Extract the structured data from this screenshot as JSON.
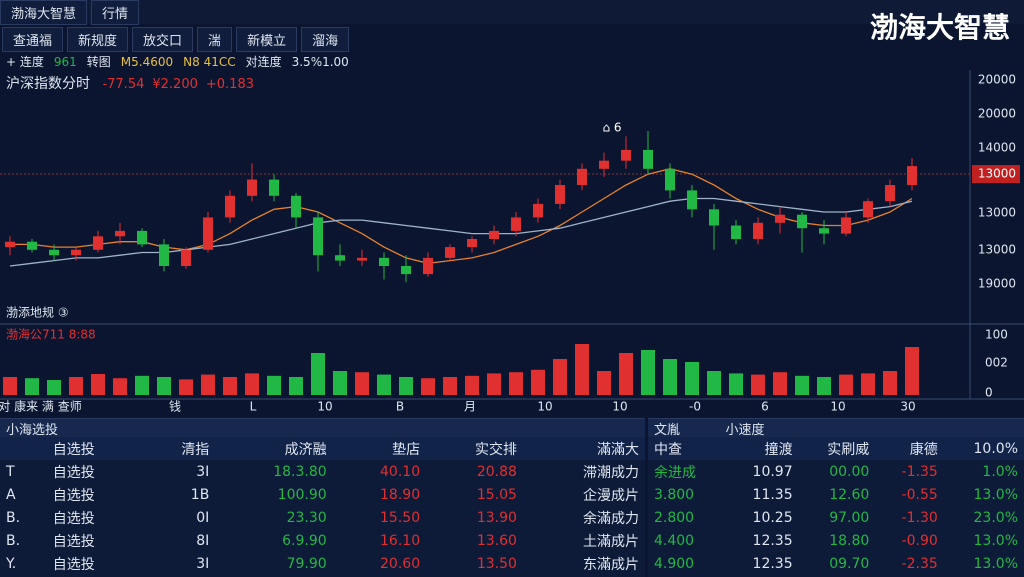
{
  "header": {
    "tabs": [
      "渤海大智慧",
      "行情"
    ],
    "brand": "渤海大智慧"
  },
  "toolbar": [
    "查通福",
    "新规度",
    "放交口",
    "湍",
    "新模立",
    "溜海"
  ],
  "info_line": [
    "+ 连度",
    "961",
    "转图",
    "M5.4600",
    "N8 41CC",
    "对连度",
    "3.5%1.00"
  ],
  "chart": {
    "title": "沪深指数分时",
    "stats": [
      "-77.54",
      "¥2.200",
      "+0.183"
    ],
    "marker": "⌂ 6",
    "price_tag": "13000",
    "y_labels": [
      "20000",
      "20000",
      "14000",
      "13000",
      "13000",
      "19000"
    ],
    "up_color": "#e03030",
    "down_color": "#22b845",
    "ylim": [
      0,
      100
    ],
    "candles": [
      [
        27,
        31,
        24,
        29
      ],
      [
        29,
        30,
        25,
        26
      ],
      [
        26,
        28,
        22,
        24
      ],
      [
        24,
        27,
        22,
        26
      ],
      [
        26,
        33,
        25,
        31
      ],
      [
        31,
        36,
        28,
        33
      ],
      [
        33,
        34,
        27,
        28
      ],
      [
        28,
        30,
        18,
        20
      ],
      [
        20,
        27,
        19,
        26
      ],
      [
        26,
        40,
        25,
        38
      ],
      [
        38,
        48,
        36,
        46
      ],
      [
        46,
        58,
        44,
        52
      ],
      [
        52,
        54,
        44,
        46
      ],
      [
        46,
        47,
        34,
        38
      ],
      [
        38,
        40,
        18,
        24
      ],
      [
        24,
        28,
        20,
        22
      ],
      [
        22,
        26,
        20,
        23
      ],
      [
        23,
        25,
        15,
        20
      ],
      [
        20,
        24,
        14,
        17
      ],
      [
        17,
        25,
        16,
        23
      ],
      [
        23,
        28,
        22,
        27
      ],
      [
        27,
        31,
        25,
        30
      ],
      [
        30,
        35,
        28,
        33
      ],
      [
        33,
        40,
        31,
        38
      ],
      [
        38,
        45,
        36,
        43
      ],
      [
        43,
        52,
        41,
        50
      ],
      [
        50,
        58,
        48,
        56
      ],
      [
        56,
        62,
        53,
        59
      ],
      [
        59,
        68,
        56,
        63
      ],
      [
        63,
        70,
        54,
        56
      ],
      [
        56,
        58,
        45,
        48
      ],
      [
        48,
        50,
        38,
        41
      ],
      [
        41,
        43,
        26,
        35
      ],
      [
        35,
        37,
        28,
        30
      ],
      [
        30,
        38,
        28,
        36
      ],
      [
        36,
        42,
        32,
        39
      ],
      [
        39,
        40,
        25,
        34
      ],
      [
        34,
        37,
        28,
        32
      ],
      [
        32,
        40,
        31,
        38
      ],
      [
        38,
        45,
        36,
        44
      ],
      [
        44,
        52,
        42,
        50
      ],
      [
        50,
        60,
        48,
        57
      ]
    ],
    "ma": [
      {
        "color": "#e8822a",
        "values": [
          28,
          28,
          27,
          27,
          28,
          29,
          29,
          27,
          26,
          28,
          32,
          37,
          41,
          42,
          40,
          36,
          32,
          27,
          23,
          21,
          22,
          23,
          25,
          28,
          31,
          35,
          40,
          45,
          50,
          54,
          56,
          54,
          50,
          45,
          41,
          38,
          36,
          35,
          35,
          37,
          40,
          45
        ]
      },
      {
        "color": "#9fb4c8",
        "values": [
          20,
          21,
          22,
          23,
          23,
          24,
          25,
          25,
          26,
          27,
          28,
          30,
          32,
          34,
          36,
          37,
          37,
          36,
          35,
          34,
          33,
          32,
          32,
          32,
          33,
          34,
          36,
          38,
          40,
          42,
          44,
          45,
          45,
          44,
          43,
          42,
          41,
          40,
          40,
          41,
          42,
          44
        ]
      }
    ],
    "volume_title": "渤添地规 ③",
    "volume_info": "渤海公711 8:88",
    "vlim": [
      0,
      100
    ],
    "volume_labels": [
      "100",
      "002",
      "0"
    ],
    "volumes": [
      30,
      28,
      25,
      30,
      35,
      28,
      32,
      30,
      26,
      34,
      30,
      36,
      32,
      30,
      70,
      40,
      38,
      34,
      30,
      28,
      30,
      32,
      36,
      38,
      42,
      60,
      85,
      40,
      70,
      75,
      60,
      55,
      40,
      36,
      34,
      38,
      32,
      30,
      34,
      36,
      40,
      80
    ],
    "x_labels": [
      "对 康来 满 查师",
      "钱",
      "L",
      "10",
      "B",
      "月",
      "10",
      "10",
      "-0",
      "6",
      "10",
      "30"
    ]
  },
  "left_table": {
    "tab": "小海选投",
    "columns": [
      "自选投",
      "清指",
      "成济融",
      "垫店",
      "实交排",
      "滿滿大"
    ],
    "rows": [
      [
        "T",
        "自选投",
        "3I",
        "18.3.80",
        "40.10",
        "20.88",
        "滞潮成力"
      ],
      [
        "A",
        "自选投",
        "1B",
        "100.90",
        "18.90",
        "15.05",
        "企漫成片"
      ],
      [
        "B.",
        "自选投",
        "0I",
        "23.30",
        "15.50",
        "13.90",
        "余滿成力"
      ],
      [
        "B.",
        "自选投",
        "8I",
        "6.9.90",
        "16.10",
        "13.60",
        "土滿成片"
      ],
      [
        "Y.",
        "自选投",
        "3I",
        "79.90",
        "20.60",
        "13.50",
        "东滿成片"
      ]
    ]
  },
  "right_table": {
    "tabs": [
      "文胤",
      "小速度"
    ],
    "columns": [
      "中查",
      "撞渡",
      "实刷威",
      "康德",
      "10.0%"
    ],
    "rows": [
      [
        "余进成",
        "10.97",
        "00.00",
        "-1.35",
        "1.0%"
      ],
      [
        "3.800",
        "11.35",
        "12.60",
        "-0.55",
        "13.0%"
      ],
      [
        "2.800",
        "10.25",
        "97.00",
        "-1.30",
        "23.0%"
      ],
      [
        "4.400",
        "12.35",
        "18.80",
        "-0.90",
        "13.0%"
      ],
      [
        "4.900",
        "12.35",
        "09.70",
        "-2.35",
        "13.0%"
      ]
    ]
  }
}
